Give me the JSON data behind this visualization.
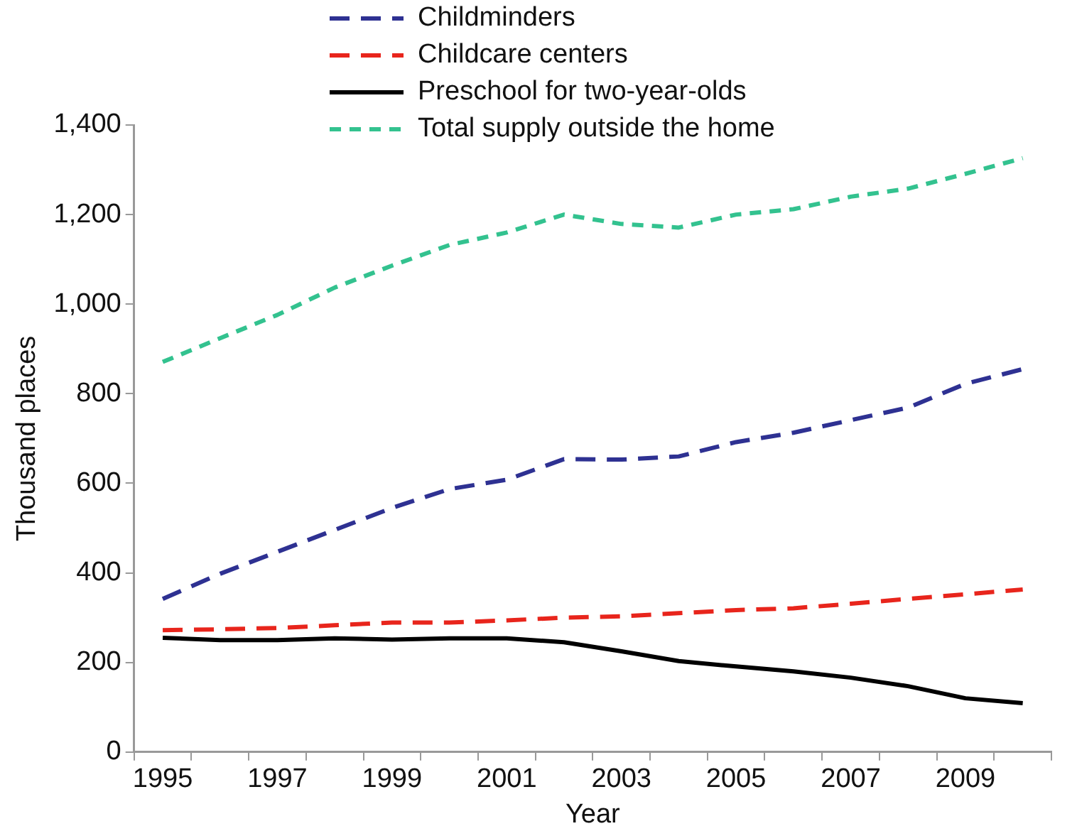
{
  "chart_data": {
    "type": "line",
    "xlabel": "Year",
    "ylabel": "Thousand places",
    "categories": [
      "1995",
      null,
      "1997",
      null,
      "1999",
      null,
      "2001",
      null,
      "2003",
      null,
      "2005",
      null,
      "2007",
      null,
      "2009",
      null
    ],
    "series": [
      {
        "name": "Childminders",
        "color": "#2e3192",
        "line_style": "dashed",
        "values": [
          342,
          398,
          447,
          496,
          545,
          587,
          608,
          654,
          653,
          660,
          692,
          713,
          741,
          769,
          822,
          855
        ]
      },
      {
        "name": "Childcare centers",
        "color": "#e8251c",
        "line_style": "dashed",
        "values": [
          272,
          274,
          277,
          283,
          289,
          289,
          294,
          300,
          303,
          310,
          317,
          321,
          331,
          342,
          352,
          363
        ]
      },
      {
        "name": "Preschool for two-year-olds",
        "color": "#000000",
        "line_style": "solid",
        "values": [
          255,
          250,
          250,
          254,
          251,
          254,
          254,
          245,
          225,
          203,
          191,
          180,
          166,
          147,
          120,
          109
        ]
      },
      {
        "name": "Total supply outside the home",
        "color": "#33c28f",
        "line_style": "dotted",
        "values": [
          871,
          924,
          976,
          1037,
          1086,
          1132,
          1160,
          1200,
          1179,
          1171,
          1200,
          1212,
          1240,
          1258,
          1291,
          1326
        ]
      }
    ],
    "ylim": [
      0,
      1400
    ],
    "yticks": [
      0,
      200,
      400,
      600,
      800,
      {
        "value": 1000,
        "label": "1,000"
      },
      {
        "value": 1200,
        "label": "1,200"
      },
      {
        "value": 1400,
        "label": "1,400"
      }
    ],
    "grid": false,
    "legend": "top",
    "marker": "none"
  }
}
